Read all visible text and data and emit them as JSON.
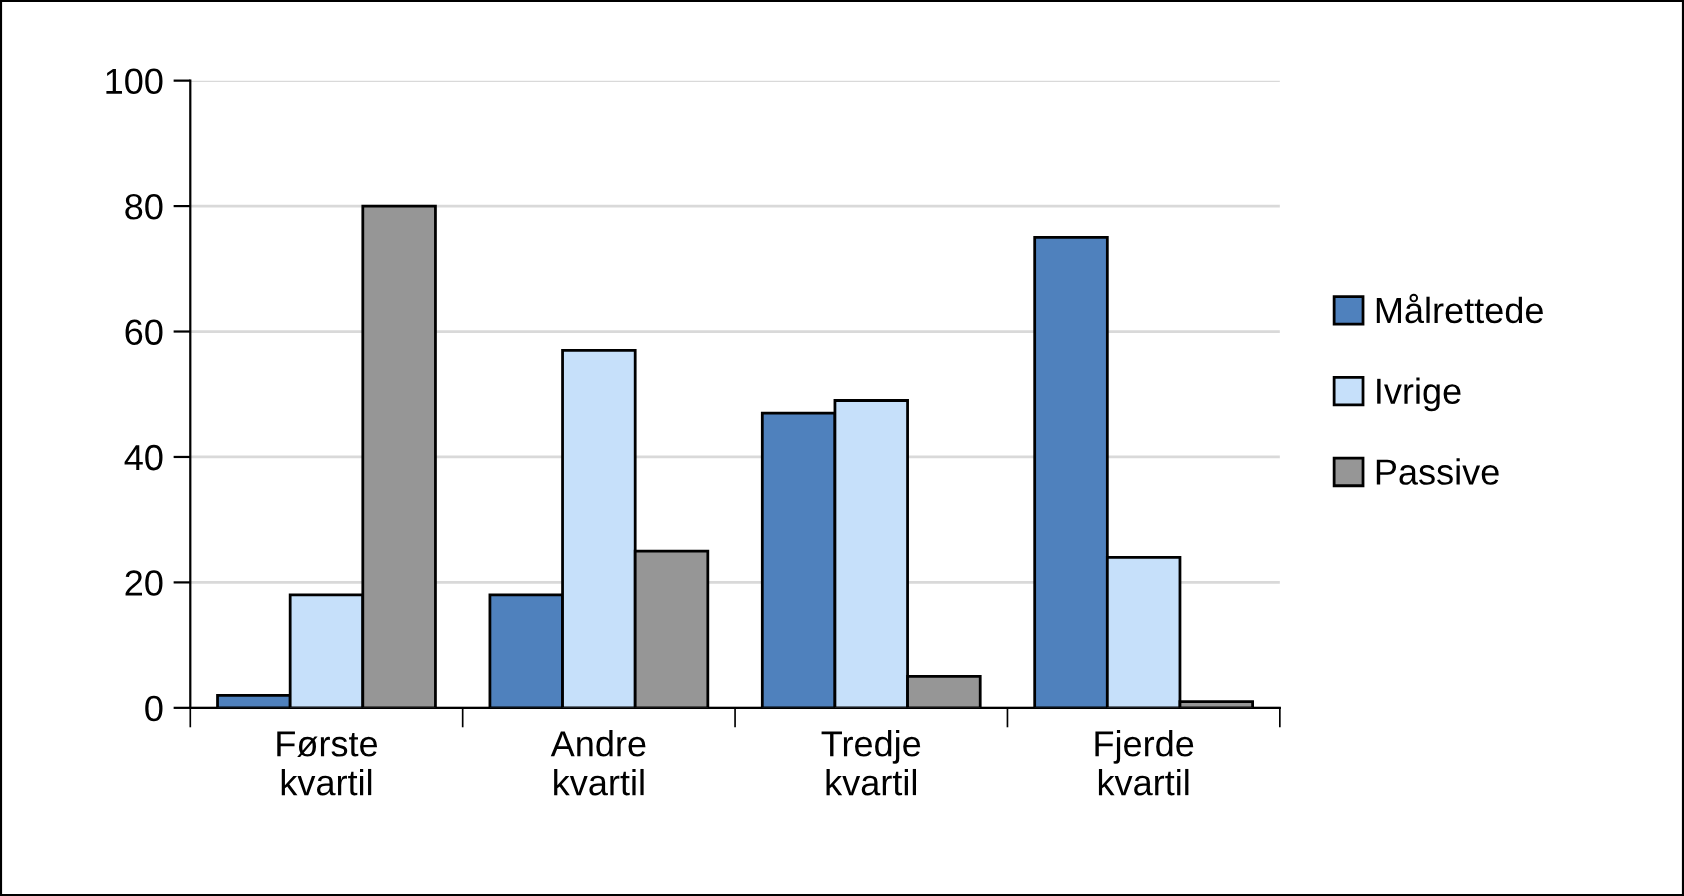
{
  "chart_data": {
    "type": "bar",
    "categories": [
      "Første\nkvartil",
      "Andre\nkvartil",
      "Tredje\nkvartil",
      "Fjerde\nkvartil"
    ],
    "series": [
      {
        "name": "Målrettede",
        "color": "#4f81bd",
        "values": [
          2,
          18,
          47,
          75
        ]
      },
      {
        "name": "Ivrige",
        "color": "#c6e0fa",
        "values": [
          18,
          57,
          49,
          24
        ]
      },
      {
        "name": "Passive",
        "color": "#969696",
        "values": [
          80,
          25,
          5,
          1
        ]
      }
    ],
    "ylim": [
      0,
      100
    ],
    "yticks": [
      0,
      20,
      40,
      60,
      80,
      100
    ],
    "grid": "y",
    "legend": "right"
  }
}
